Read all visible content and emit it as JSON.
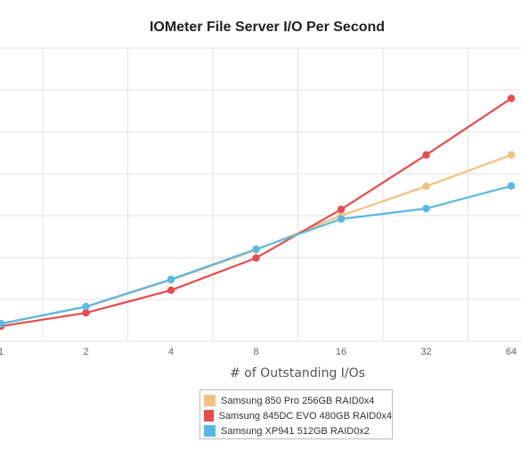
{
  "chart_data": {
    "type": "line",
    "title": "IOMeter File Server I/O Per Second",
    "xlabel": "# of Outstanding I/Os",
    "ylabel": "",
    "categories": [
      "1",
      "2",
      "4",
      "8",
      "16",
      "32",
      "64"
    ],
    "ylim": [
      0,
      7000
    ],
    "grid": true,
    "legend_position": "bottom-center",
    "series": [
      {
        "name": "Samsung 850 Pro 256GB RAID0x4",
        "color": "#f0c27e",
        "values": [
          420,
          820,
          1460,
          2180,
          3000,
          3700,
          4450
        ]
      },
      {
        "name": "Samsung 845DC EVO 480GB RAID0x4",
        "color": "#e84c4c",
        "values": [
          360,
          680,
          1220,
          1990,
          3150,
          4450,
          5800
        ]
      },
      {
        "name": "Samsung XP941 512GB RAID0x2",
        "color": "#5bb8e6",
        "values": [
          420,
          830,
          1480,
          2200,
          2920,
          3170,
          3710
        ]
      }
    ]
  }
}
